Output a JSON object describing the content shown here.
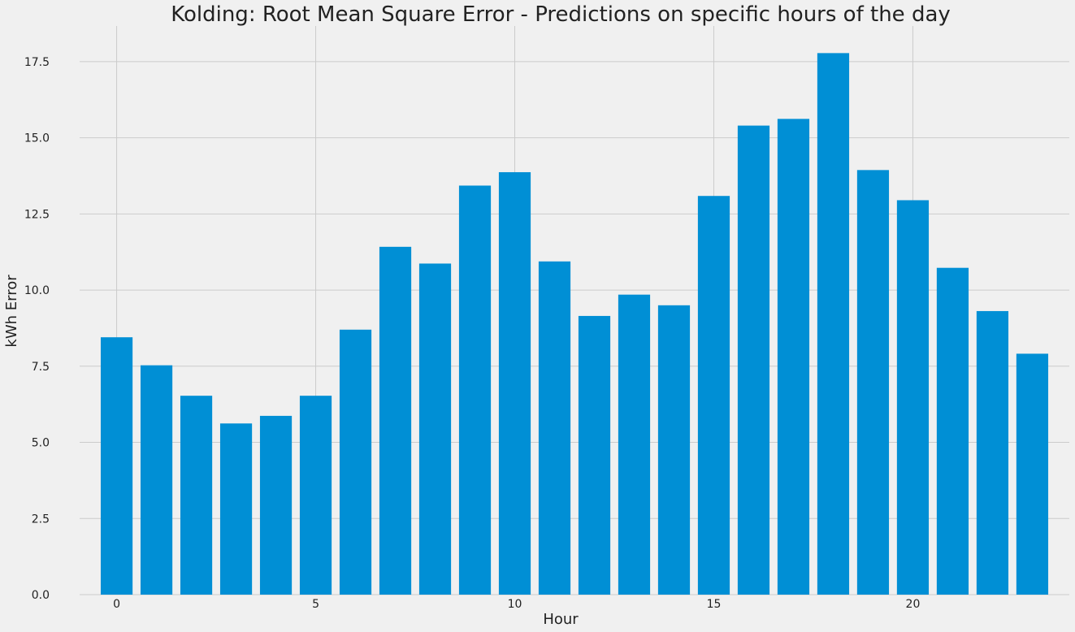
{
  "chart_data": {
    "type": "bar",
    "title": "Kolding: Root Mean Square Error - Predictions on specific hours of the day",
    "xlabel": "Hour",
    "ylabel": "kWh Error",
    "x": [
      0,
      1,
      2,
      3,
      4,
      5,
      6,
      7,
      8,
      9,
      10,
      11,
      12,
      13,
      14,
      15,
      16,
      17,
      18,
      19,
      20,
      21,
      22,
      23
    ],
    "values": [
      8.45,
      7.53,
      6.53,
      5.62,
      5.87,
      6.53,
      8.7,
      11.42,
      10.87,
      13.43,
      13.87,
      10.94,
      9.15,
      9.85,
      9.5,
      13.09,
      15.4,
      15.62,
      17.78,
      13.94,
      12.95,
      10.73,
      9.31,
      7.91
    ],
    "xticks": [
      0,
      5,
      10,
      15,
      20
    ],
    "xtick_labels": [
      "0",
      "5",
      "10",
      "15",
      "20"
    ],
    "yticks": [
      0,
      2.5,
      5,
      7.5,
      10,
      12.5,
      15,
      17.5
    ],
    "ytick_labels": [
      "0.0",
      "2.5",
      "5.0",
      "7.5",
      "10.0",
      "12.5",
      "15.0",
      "17.5"
    ],
    "xlim": [
      -0.93,
      23.93
    ],
    "ylim": [
      0,
      18.67
    ],
    "grid": true,
    "bar_color": "#008fd5",
    "background_color": "#f0f0f0",
    "grid_color": "#cbcbcb"
  }
}
